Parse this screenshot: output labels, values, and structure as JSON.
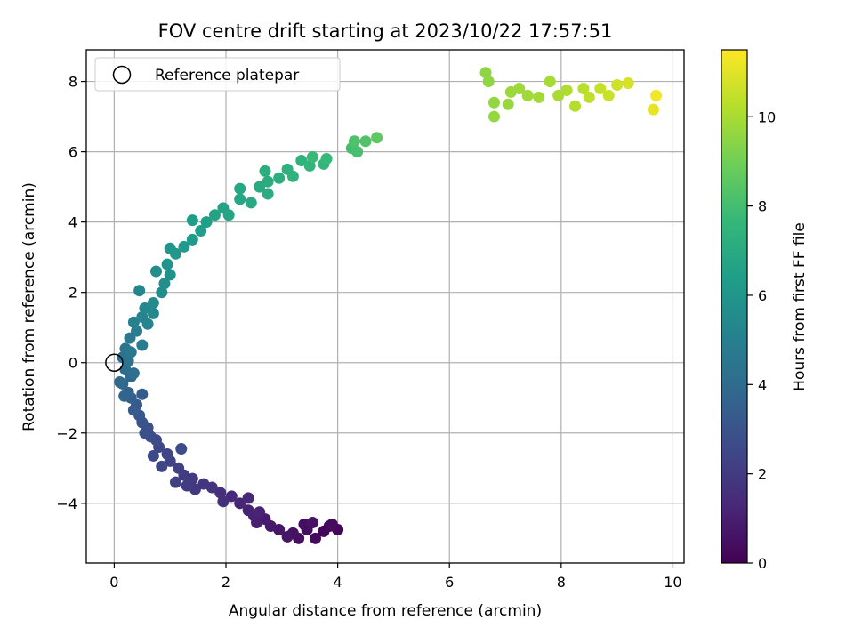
{
  "chart_data": {
    "type": "scatter",
    "title": "FOV centre drift starting at 2023/10/22 17:57:51",
    "xlabel": "Angular distance from reference (arcmin)",
    "ylabel": "Rotation from reference (arcmin)",
    "xlim": [
      -0.5,
      10.2
    ],
    "ylim": [
      -5.7,
      8.9
    ],
    "xticks": [
      0,
      2,
      4,
      6,
      8,
      10
    ],
    "yticks": [
      -4,
      -2,
      0,
      2,
      4,
      6,
      8
    ],
    "grid": true,
    "legend": {
      "position": "top-left",
      "entries": [
        "Reference platepar"
      ]
    },
    "reference_point": {
      "name": "Reference platepar",
      "x": 0,
      "y": 0,
      "marker": "hollow-circle"
    },
    "colorbar": {
      "label": "Hours from first FF file",
      "range": [
        0,
        11.5
      ],
      "ticks": [
        0,
        2,
        4,
        6,
        8,
        10
      ],
      "colormap": "viridis",
      "colormap_stops": [
        "#440154",
        "#482878",
        "#3e4989",
        "#31688e",
        "#26828e",
        "#1f9e89",
        "#35b779",
        "#6ece58",
        "#b5de2b",
        "#fde725"
      ]
    },
    "points": [
      {
        "x": 3.75,
        "y": -4.8,
        "h": 0.1
      },
      {
        "x": 3.85,
        "y": -4.65,
        "h": 0.2
      },
      {
        "x": 4.0,
        "y": -4.75,
        "h": 0.2
      },
      {
        "x": 3.6,
        "y": -5.0,
        "h": 0.3
      },
      {
        "x": 3.9,
        "y": -4.6,
        "h": 0.35
      },
      {
        "x": 3.45,
        "y": -4.75,
        "h": 0.4
      },
      {
        "x": 3.4,
        "y": -4.6,
        "h": 0.45
      },
      {
        "x": 3.3,
        "y": -5.0,
        "h": 0.5
      },
      {
        "x": 3.2,
        "y": -4.85,
        "h": 0.55
      },
      {
        "x": 3.55,
        "y": -4.55,
        "h": 0.6
      },
      {
        "x": 3.1,
        "y": -4.95,
        "h": 0.65
      },
      {
        "x": 2.95,
        "y": -4.75,
        "h": 0.7
      },
      {
        "x": 2.8,
        "y": -4.65,
        "h": 0.8
      },
      {
        "x": 2.7,
        "y": -4.45,
        "h": 0.9
      },
      {
        "x": 2.55,
        "y": -4.55,
        "h": 1.0
      },
      {
        "x": 2.5,
        "y": -4.35,
        "h": 1.05
      },
      {
        "x": 2.4,
        "y": -4.2,
        "h": 1.1
      },
      {
        "x": 2.6,
        "y": -4.25,
        "h": 1.15
      },
      {
        "x": 2.25,
        "y": -4.0,
        "h": 1.2
      },
      {
        "x": 2.4,
        "y": -3.85,
        "h": 1.3
      },
      {
        "x": 2.1,
        "y": -3.8,
        "h": 1.4
      },
      {
        "x": 1.9,
        "y": -3.7,
        "h": 1.5
      },
      {
        "x": 1.95,
        "y": -3.95,
        "h": 1.6
      },
      {
        "x": 1.75,
        "y": -3.55,
        "h": 1.7
      },
      {
        "x": 1.6,
        "y": -3.45,
        "h": 1.8
      },
      {
        "x": 1.45,
        "y": -3.6,
        "h": 1.9
      },
      {
        "x": 1.4,
        "y": -3.3,
        "h": 2.0
      },
      {
        "x": 1.3,
        "y": -3.5,
        "h": 2.05
      },
      {
        "x": 1.25,
        "y": -3.2,
        "h": 2.1
      },
      {
        "x": 1.15,
        "y": -3.0,
        "h": 2.2
      },
      {
        "x": 1.1,
        "y": -3.4,
        "h": 2.25
      },
      {
        "x": 1.0,
        "y": -2.8,
        "h": 2.3
      },
      {
        "x": 0.95,
        "y": -2.6,
        "h": 2.4
      },
      {
        "x": 0.85,
        "y": -2.95,
        "h": 2.45
      },
      {
        "x": 0.8,
        "y": -2.4,
        "h": 2.5
      },
      {
        "x": 0.7,
        "y": -2.65,
        "h": 2.55
      },
      {
        "x": 0.75,
        "y": -2.2,
        "h": 2.6
      },
      {
        "x": 0.65,
        "y": -2.1,
        "h": 2.7
      },
      {
        "x": 1.2,
        "y": -2.45,
        "h": 2.75
      },
      {
        "x": 0.6,
        "y": -1.85,
        "h": 2.8
      },
      {
        "x": 0.55,
        "y": -2.0,
        "h": 2.9
      },
      {
        "x": 0.5,
        "y": -1.7,
        "h": 3.0
      },
      {
        "x": 0.45,
        "y": -1.5,
        "h": 3.1
      },
      {
        "x": 0.4,
        "y": -1.2,
        "h": 3.2
      },
      {
        "x": 0.35,
        "y": -1.35,
        "h": 3.3
      },
      {
        "x": 0.5,
        "y": -0.9,
        "h": 3.4
      },
      {
        "x": 0.3,
        "y": -1.0,
        "h": 3.5
      },
      {
        "x": 0.25,
        "y": -0.85,
        "h": 3.6
      },
      {
        "x": 0.18,
        "y": -0.95,
        "h": 3.7
      },
      {
        "x": 0.15,
        "y": -0.6,
        "h": 3.8
      },
      {
        "x": 0.3,
        "y": -0.4,
        "h": 3.9
      },
      {
        "x": 0.1,
        "y": -0.55,
        "h": 4.0
      },
      {
        "x": 0.2,
        "y": -0.2,
        "h": 4.1
      },
      {
        "x": 0.35,
        "y": -0.3,
        "h": 4.2
      },
      {
        "x": 0.15,
        "y": 0.15,
        "h": 4.3
      },
      {
        "x": 0.25,
        "y": 0.05,
        "h": 4.4
      },
      {
        "x": 0.2,
        "y": 0.4,
        "h": 4.5
      },
      {
        "x": 0.3,
        "y": 0.3,
        "h": 4.6
      },
      {
        "x": 0.28,
        "y": 0.7,
        "h": 4.7
      },
      {
        "x": 0.5,
        "y": 0.5,
        "h": 4.8
      },
      {
        "x": 0.4,
        "y": 0.9,
        "h": 4.9
      },
      {
        "x": 0.35,
        "y": 1.15,
        "h": 5.0
      },
      {
        "x": 0.5,
        "y": 1.3,
        "h": 5.1
      },
      {
        "x": 0.6,
        "y": 1.1,
        "h": 5.2
      },
      {
        "x": 0.55,
        "y": 1.55,
        "h": 5.3
      },
      {
        "x": 0.45,
        "y": 2.05,
        "h": 5.35
      },
      {
        "x": 0.7,
        "y": 1.4,
        "h": 5.4
      },
      {
        "x": 0.7,
        "y": 1.7,
        "h": 5.5
      },
      {
        "x": 0.85,
        "y": 2.0,
        "h": 5.6
      },
      {
        "x": 0.9,
        "y": 2.25,
        "h": 5.65
      },
      {
        "x": 0.75,
        "y": 2.6,
        "h": 5.7
      },
      {
        "x": 1.0,
        "y": 2.5,
        "h": 5.8
      },
      {
        "x": 0.95,
        "y": 2.8,
        "h": 5.9
      },
      {
        "x": 1.0,
        "y": 3.25,
        "h": 6.0
      },
      {
        "x": 1.1,
        "y": 3.1,
        "h": 6.1
      },
      {
        "x": 1.25,
        "y": 3.3,
        "h": 6.2
      },
      {
        "x": 1.4,
        "y": 3.5,
        "h": 6.3
      },
      {
        "x": 1.4,
        "y": 4.05,
        "h": 6.35
      },
      {
        "x": 1.55,
        "y": 3.75,
        "h": 6.4
      },
      {
        "x": 1.65,
        "y": 4.0,
        "h": 6.5
      },
      {
        "x": 1.8,
        "y": 4.2,
        "h": 6.6
      },
      {
        "x": 1.95,
        "y": 4.4,
        "h": 6.7
      },
      {
        "x": 2.05,
        "y": 4.2,
        "h": 6.75
      },
      {
        "x": 2.25,
        "y": 4.65,
        "h": 6.8
      },
      {
        "x": 2.25,
        "y": 4.95,
        "h": 6.85
      },
      {
        "x": 2.45,
        "y": 4.55,
        "h": 6.9
      },
      {
        "x": 2.6,
        "y": 5.0,
        "h": 7.0
      },
      {
        "x": 2.75,
        "y": 4.8,
        "h": 7.05
      },
      {
        "x": 2.75,
        "y": 5.15,
        "h": 7.1
      },
      {
        "x": 2.7,
        "y": 5.45,
        "h": 7.15
      },
      {
        "x": 2.95,
        "y": 5.25,
        "h": 7.2
      },
      {
        "x": 3.1,
        "y": 5.5,
        "h": 7.3
      },
      {
        "x": 3.2,
        "y": 5.3,
        "h": 7.35
      },
      {
        "x": 3.35,
        "y": 5.75,
        "h": 7.4
      },
      {
        "x": 3.5,
        "y": 5.6,
        "h": 7.5
      },
      {
        "x": 3.75,
        "y": 5.65,
        "h": 7.6
      },
      {
        "x": 3.8,
        "y": 5.8,
        "h": 7.7
      },
      {
        "x": 3.55,
        "y": 5.85,
        "h": 7.75
      },
      {
        "x": 4.25,
        "y": 6.1,
        "h": 8.0
      },
      {
        "x": 4.35,
        "y": 6.0,
        "h": 8.1
      },
      {
        "x": 4.3,
        "y": 6.3,
        "h": 8.2
      },
      {
        "x": 4.5,
        "y": 6.3,
        "h": 8.3
      },
      {
        "x": 4.7,
        "y": 6.4,
        "h": 8.6
      },
      {
        "x": 6.65,
        "y": 8.25,
        "h": 9.5
      },
      {
        "x": 6.7,
        "y": 8.0,
        "h": 9.55
      },
      {
        "x": 6.8,
        "y": 7.4,
        "h": 9.6
      },
      {
        "x": 6.8,
        "y": 7.0,
        "h": 9.65
      },
      {
        "x": 7.05,
        "y": 7.35,
        "h": 9.7
      },
      {
        "x": 7.1,
        "y": 7.7,
        "h": 9.75
      },
      {
        "x": 7.25,
        "y": 7.8,
        "h": 9.8
      },
      {
        "x": 7.4,
        "y": 7.6,
        "h": 9.85
      },
      {
        "x": 7.6,
        "y": 7.55,
        "h": 9.9
      },
      {
        "x": 7.8,
        "y": 8.0,
        "h": 9.95
      },
      {
        "x": 7.95,
        "y": 7.6,
        "h": 10.0
      },
      {
        "x": 8.1,
        "y": 7.75,
        "h": 10.1
      },
      {
        "x": 8.25,
        "y": 7.3,
        "h": 10.2
      },
      {
        "x": 8.4,
        "y": 7.8,
        "h": 10.3
      },
      {
        "x": 8.5,
        "y": 7.55,
        "h": 10.4
      },
      {
        "x": 8.7,
        "y": 7.8,
        "h": 10.5
      },
      {
        "x": 8.85,
        "y": 7.6,
        "h": 10.6
      },
      {
        "x": 9.0,
        "y": 7.9,
        "h": 10.7
      },
      {
        "x": 9.2,
        "y": 7.95,
        "h": 10.8
      },
      {
        "x": 9.65,
        "y": 7.2,
        "h": 11.1
      },
      {
        "x": 9.7,
        "y": 7.6,
        "h": 11.3
      }
    ]
  }
}
